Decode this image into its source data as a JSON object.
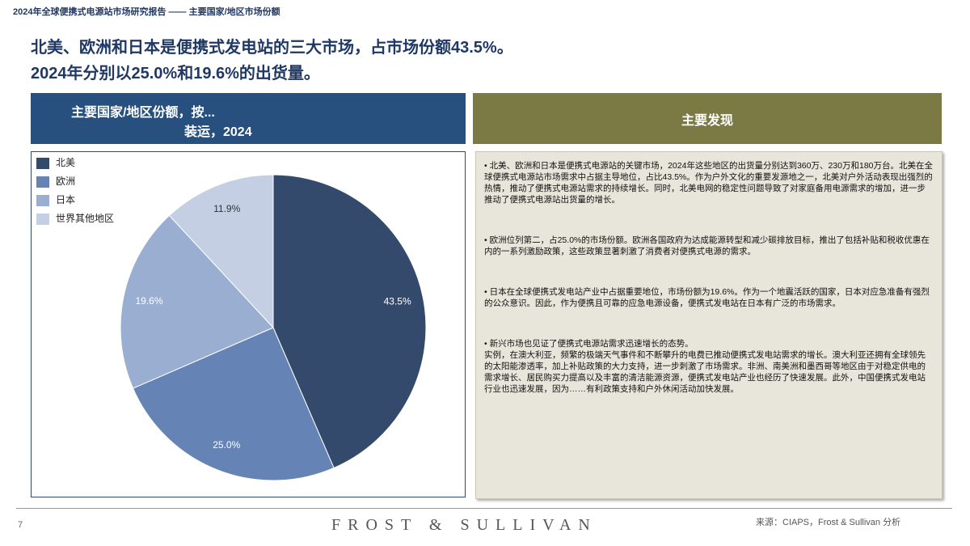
{
  "header": "2024年全球便携式电源站市场研究报告 —— 主要国家/地区市场份额",
  "headline": [
    "北美、欧洲和日本是便携式发电站的三大市场，占市场份额43.5%。",
    "2024年分别以25.0%和19.6%的出货量。"
  ],
  "chart_data": {
    "type": "pie",
    "title": [
      "主要国家/地区份额，按...",
      "装运，2024"
    ],
    "categories": [
      "北美",
      "欧洲",
      "日本",
      "世界其他地区"
    ],
    "values": [
      43.5,
      25.0,
      19.6,
      11.9
    ],
    "value_labels": [
      "43.5%",
      "25.0%",
      "19.6%",
      "11.9%"
    ],
    "colors": [
      "#344a6d",
      "#6584b5",
      "#9aaed2",
      "#c5cfe3"
    ],
    "legend": "top-left"
  },
  "findings": {
    "title": "主要发现",
    "paragraphs": [
      [
        "• 北美、欧洲和日本是便携式电源站的关键市场，2024年这些地区的出货量分别达到360万、230万和180万台。北美在全球便携式电源站市场需求中占据主导地位，占比43.5%。作为户外文化的重要发源地之一，北美对户外活动表现出强烈的热情，推动了便携式电源站需求的持续增长。同时，北美电网的稳定性问题导致了对家庭备用电源需求的增加，进一步推动了便携式电源站出货量的增长。"
      ],
      [
        "• 欧洲位列第二，占25.0%的市场份额。欧洲各国政府为达成能源转型和减少碳排放目标，推出了包括补贴和税收优惠在内的一系列激励政策，这些政策显著刺激了消费者对便携式电源的需求。"
      ],
      [
        "• 日本在全球便携式发电站产业中占据重要地位，市场份额为19.6%。作为一个地震活跃的国家，日本对应急准备有强烈的公众意识。因此，作为便携且可靠的应急电源设备，便携式发电站在日本有广泛的市场需求。"
      ],
      [
        "• 新兴市场也见证了便携式电源站需求迅速增长的态势。",
        "实例，在澳大利亚，频繁的极端天气事件和不断攀升的电费已推动便携式发电站需求的增长。澳大利亚还拥有全球领先的太阳能渗透率，加上补贴政策的大力支持，进一步刺激了市场需求。非洲、南美洲和墨西哥等地区由于对稳定供电的需求增长、居民购买力提高以及丰富的清洁能源资源，便携式发电站产业也经历了快速发展。此外，中国便携式发电站行业也迅速发展，因为……有利政策支持和户外休闲活动加快发展。"
      ]
    ]
  },
  "footer": {
    "page": "7",
    "logo": "FROST & SULLIVAN",
    "source": "来源：CIAPS，Frost & Sullivan 分析"
  }
}
